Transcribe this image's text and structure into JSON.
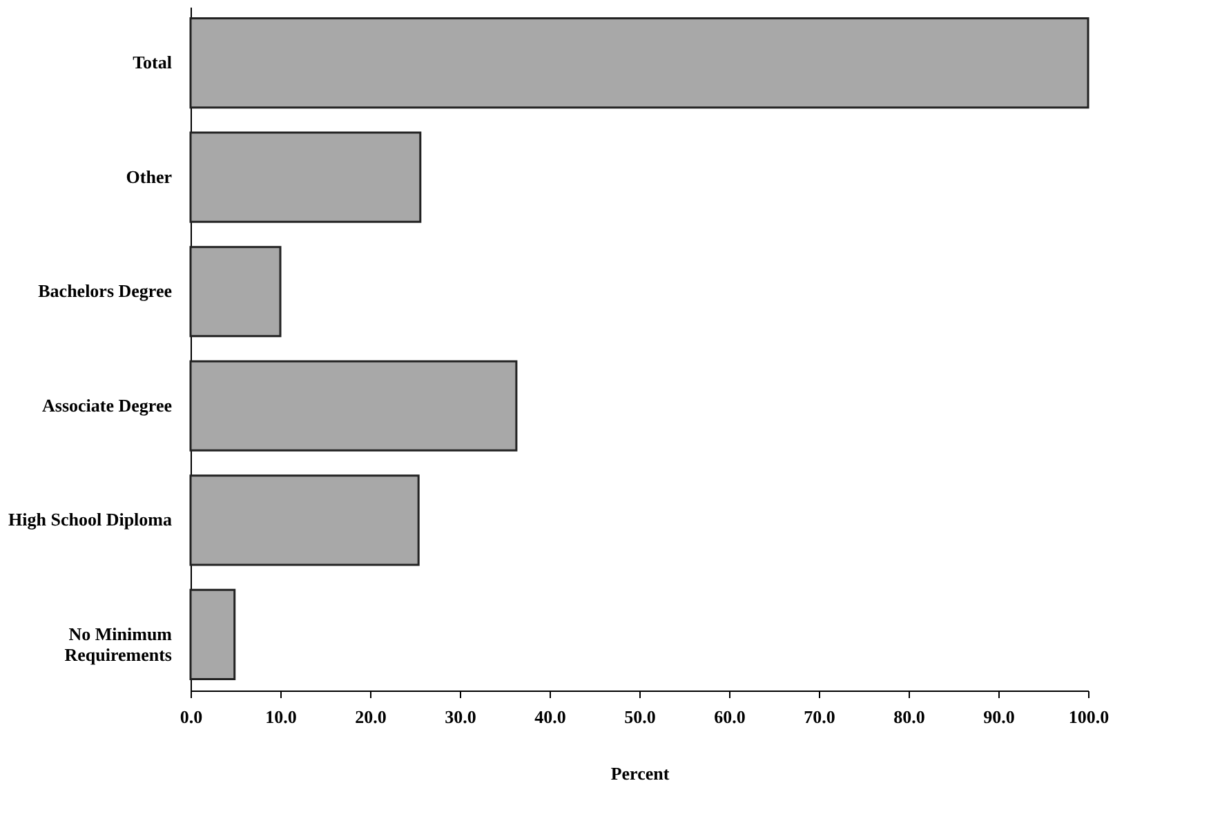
{
  "chart_data": {
    "type": "bar",
    "orientation": "horizontal",
    "xlabel": "Percent",
    "categories": [
      "Total",
      "Other",
      "Bachelors Degree",
      "Associate Degree",
      "High School Diploma",
      "No Minimum Requirements"
    ],
    "values": [
      100,
      25.6,
      10.0,
      36.3,
      25.4,
      4.9
    ],
    "color": "#a8a8a8",
    "xlim": [
      0,
      100
    ],
    "xticks": [
      {
        "value": 0,
        "label": "0.0"
      },
      {
        "value": 10,
        "label": "10.0"
      },
      {
        "value": 20,
        "label": "20.0"
      },
      {
        "value": 30,
        "label": "30.0"
      },
      {
        "value": 40,
        "label": "40.0"
      },
      {
        "value": 50,
        "label": "50.0"
      },
      {
        "value": 60,
        "label": "60.0"
      },
      {
        "value": 70,
        "label": "70.0"
      },
      {
        "value": 80,
        "label": "80.0"
      },
      {
        "value": 90,
        "label": "90.0"
      },
      {
        "value": 100,
        "label": "100.0"
      }
    ],
    "grid": false
  }
}
